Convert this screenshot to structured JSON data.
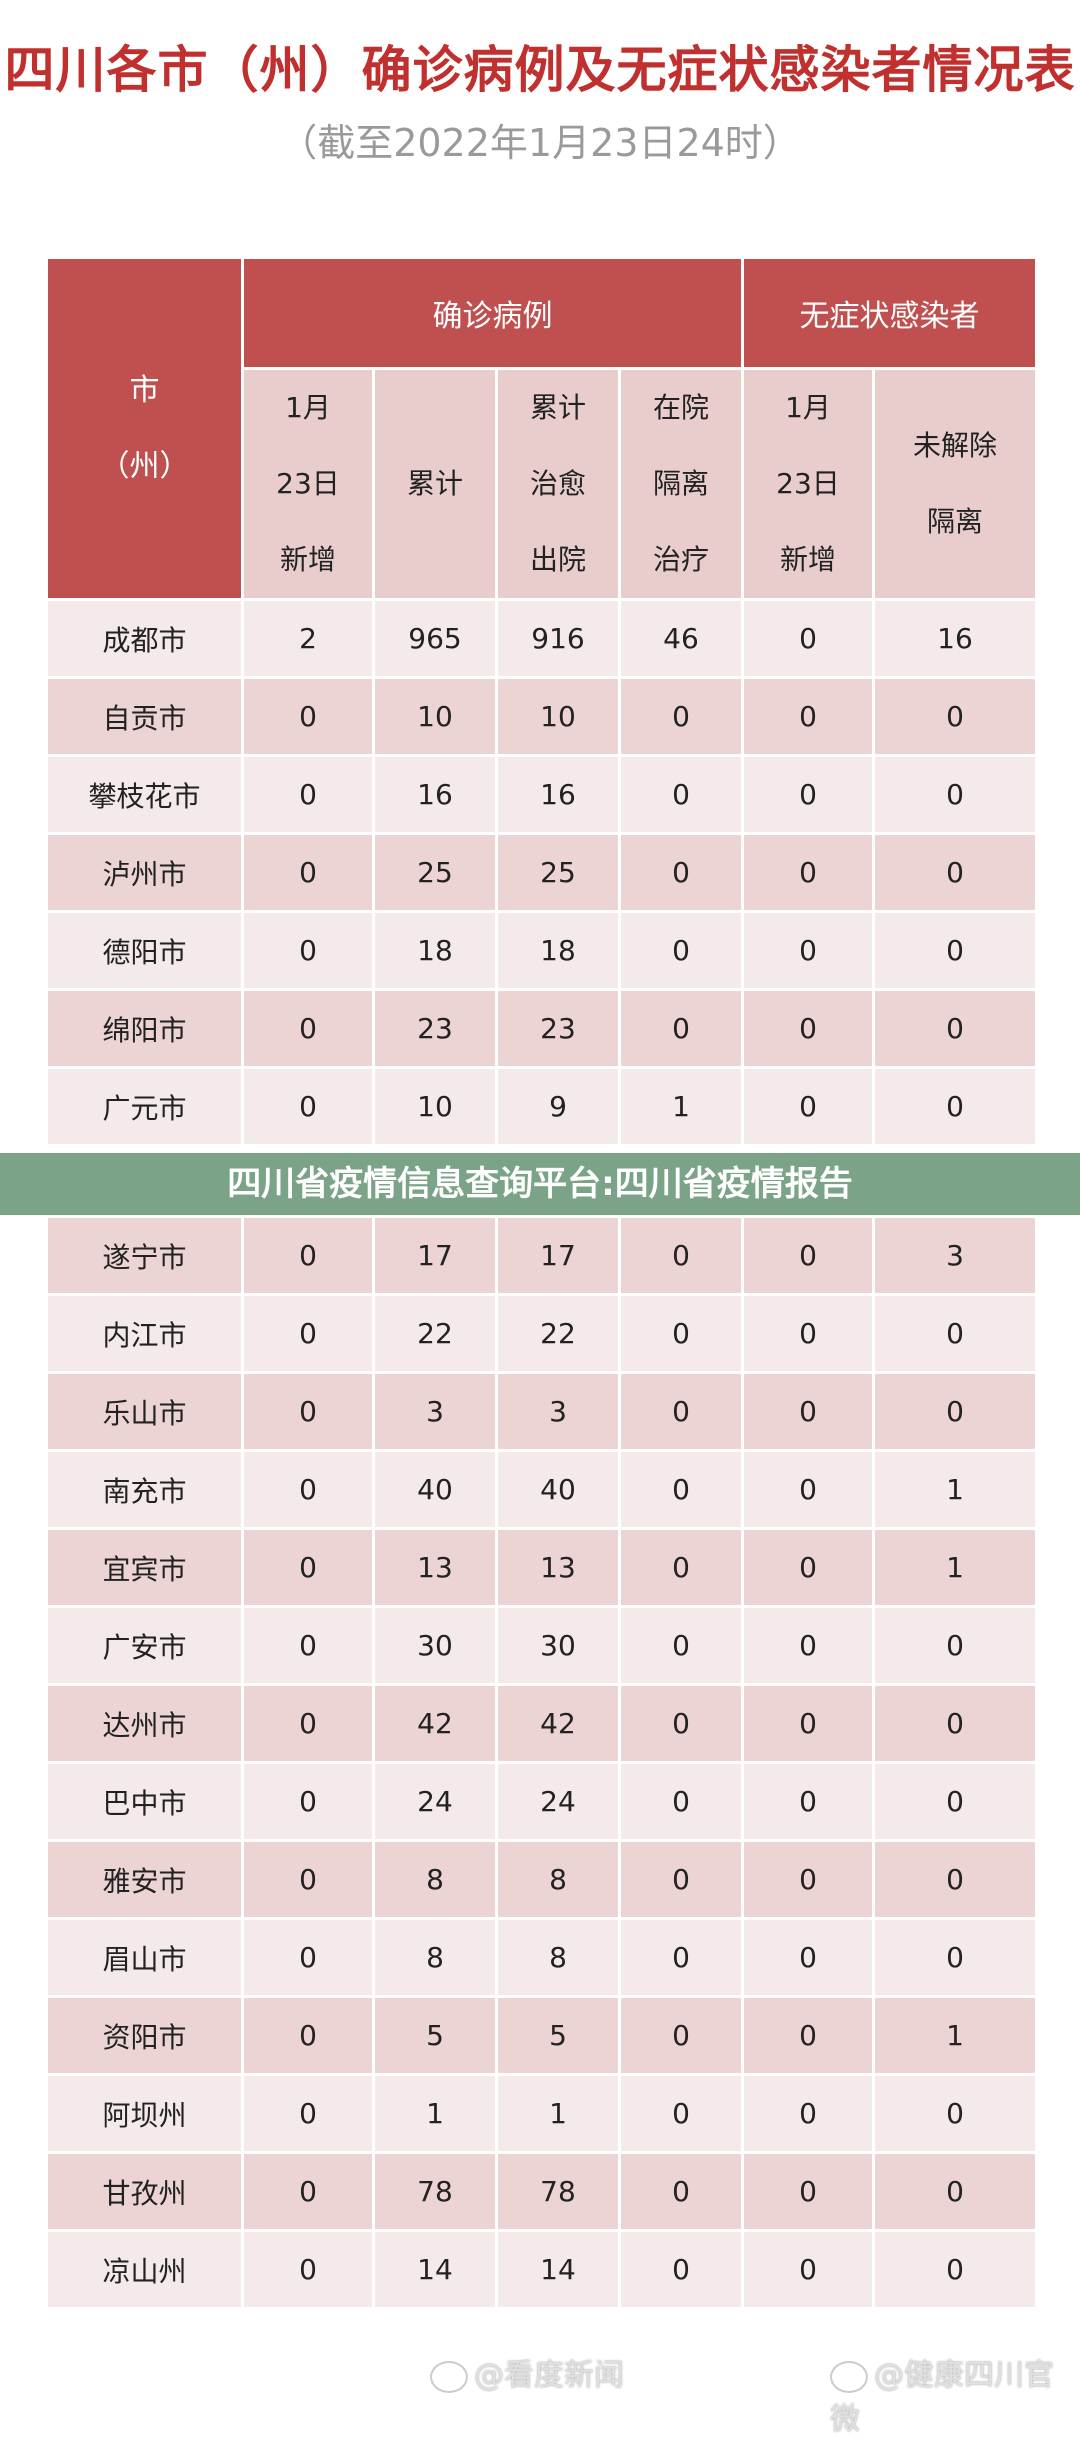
{
  "title": "四川各市（州）确诊病例及无症状感染者情况表",
  "subtitle": "（截至2022年1月23日24时）",
  "table": {
    "city_header": [
      "市",
      "（州）"
    ],
    "group_confirmed": "确诊病例",
    "group_asymptomatic": "无症状感染者",
    "sub_headers": [
      [
        "1月",
        "23日",
        "新增"
      ],
      [
        "累计"
      ],
      [
        "累计",
        "治愈",
        "出院"
      ],
      [
        "在院",
        "隔离",
        "治疗"
      ],
      [
        "1月",
        "23日",
        "新增"
      ],
      [
        "未解除",
        "隔离"
      ]
    ],
    "rows": [
      [
        "成都市",
        "2",
        "965",
        "916",
        "46",
        "0",
        "16"
      ],
      [
        "自贡市",
        "0",
        "10",
        "10",
        "0",
        "0",
        "0"
      ],
      [
        "攀枝花市",
        "0",
        "16",
        "16",
        "0",
        "0",
        "0"
      ],
      [
        "泸州市",
        "0",
        "25",
        "25",
        "0",
        "0",
        "0"
      ],
      [
        "德阳市",
        "0",
        "18",
        "18",
        "0",
        "0",
        "0"
      ],
      [
        "绵阳市",
        "0",
        "23",
        "23",
        "0",
        "0",
        "0"
      ],
      [
        "广元市",
        "0",
        "10",
        "9",
        "1",
        "0",
        "0"
      ],
      [
        "遂宁市",
        "0",
        "17",
        "17",
        "0",
        "0",
        "3"
      ],
      [
        "内江市",
        "0",
        "22",
        "22",
        "0",
        "0",
        "0"
      ],
      [
        "乐山市",
        "0",
        "3",
        "3",
        "0",
        "0",
        "0"
      ],
      [
        "南充市",
        "0",
        "40",
        "40",
        "0",
        "0",
        "1"
      ],
      [
        "宜宾市",
        "0",
        "13",
        "13",
        "0",
        "0",
        "1"
      ],
      [
        "广安市",
        "0",
        "30",
        "30",
        "0",
        "0",
        "0"
      ],
      [
        "达州市",
        "0",
        "42",
        "42",
        "0",
        "0",
        "0"
      ],
      [
        "巴中市",
        "0",
        "24",
        "24",
        "0",
        "0",
        "0"
      ],
      [
        "雅安市",
        "0",
        "8",
        "8",
        "0",
        "0",
        "0"
      ],
      [
        "眉山市",
        "0",
        "8",
        "8",
        "0",
        "0",
        "0"
      ],
      [
        "资阳市",
        "0",
        "5",
        "5",
        "0",
        "0",
        "1"
      ],
      [
        "阿坝州",
        "0",
        "1",
        "1",
        "0",
        "0",
        "0"
      ],
      [
        "甘孜州",
        "0",
        "78",
        "78",
        "0",
        "0",
        "0"
      ],
      [
        "凉山州",
        "0",
        "14",
        "14",
        "0",
        "0",
        "0"
      ]
    ]
  },
  "banner": "四川省疫情信息查询平台:四川省疫情报告",
  "watermarks": [
    "@看度新闻",
    "@健康四川官微"
  ],
  "colors": {
    "header_red": "#c0504f",
    "title_red": "#c0302e",
    "banner_green": "#689676"
  }
}
